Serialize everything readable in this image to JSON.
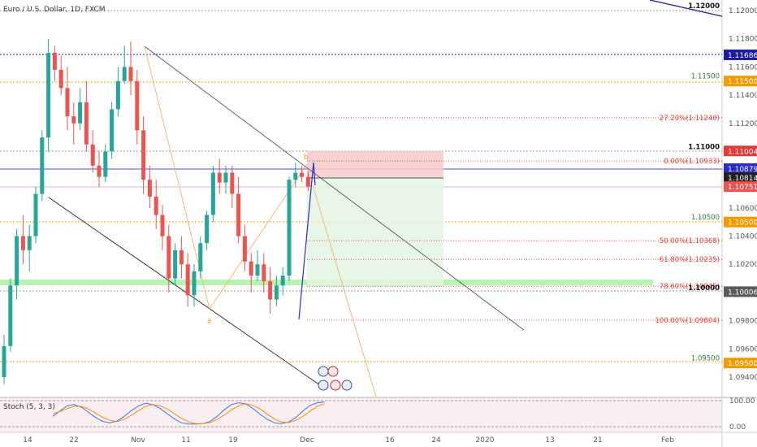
{
  "header": {
    "symbol": "Euro / U.S. Dollar, 1D, FXCM"
  },
  "indicator": {
    "label": "Stoch (5, 3, 3)",
    "upper": "100.00",
    "lower": "0.00"
  },
  "chart_data": {
    "type": "candlestick",
    "y_axis_ticks": [
      "1.12000",
      "1.11800",
      "1.11600",
      "1.11400",
      "1.11200",
      "1.11000",
      "1.10800",
      "1.10600",
      "1.10400",
      "1.10200",
      "1.10000",
      "1.09800",
      "1.09600",
      "1.09400"
    ],
    "x_axis_ticks": [
      "14",
      "22",
      "Nov",
      "11",
      "19",
      "Dec",
      "16",
      "24",
      "2020",
      "13",
      "21",
      "Feb"
    ],
    "price_tags": [
      {
        "text": "1.11686",
        "color": "#1a1aa6"
      },
      {
        "text": "1.11500",
        "color": "#f59b00"
      },
      {
        "text": "1.11004",
        "color": "#e53935"
      },
      {
        "text": "1.10879",
        "color": "#2a2ad0"
      },
      {
        "text": "1.10814",
        "color": "#222222"
      },
      {
        "text": "1.10751",
        "color": "#ef5350"
      },
      {
        "text": "1.10500",
        "color": "#f59b00"
      },
      {
        "text": "1.10006",
        "color": "#5a5a5a"
      },
      {
        "text": "1.09500",
        "color": "#f59b00"
      }
    ],
    "level_labels": [
      {
        "text": "1.12000",
        "color": "#111111",
        "bold": true
      },
      {
        "text": "1.11500",
        "color": "#2e7d32",
        "bold": false
      },
      {
        "text": "1.11000",
        "color": "#111111",
        "bold": true
      },
      {
        "text": "1.10500",
        "color": "#2e7d32",
        "bold": false
      },
      {
        "text": "1.10000",
        "color": "#111111",
        "bold": true
      },
      {
        "text": "1.09500",
        "color": "#2e7d32",
        "bold": false
      }
    ],
    "fib_levels": [
      {
        "text": "27.20%(1.11240)",
        "value": 1.1124
      },
      {
        "text": "0.00%(1.10933)",
        "value": 1.10933
      },
      {
        "text": "50.00%(1.10368)",
        "value": 1.10368
      },
      {
        "text": "61.80%(1.10235)",
        "value": 1.10235
      },
      {
        "text": "78.60%(1.10045)",
        "value": 1.10045
      },
      {
        "text": "100.00%(1.09804)",
        "value": 1.09804
      }
    ],
    "pattern_points": [
      "a",
      "b"
    ],
    "candles": [
      {
        "o": 1.094,
        "h": 1.097,
        "l": 1.0935,
        "c": 1.0962
      },
      {
        "o": 1.0962,
        "h": 1.101,
        "l": 1.0958,
        "c": 1.1005
      },
      {
        "o": 1.1005,
        "h": 1.1045,
        "l": 1.0995,
        "c": 1.104
      },
      {
        "o": 1.104,
        "h": 1.1055,
        "l": 1.102,
        "c": 1.103
      },
      {
        "o": 1.103,
        "h": 1.1048,
        "l": 1.1015,
        "c": 1.104
      },
      {
        "o": 1.104,
        "h": 1.1075,
        "l": 1.1035,
        "c": 1.107
      },
      {
        "o": 1.107,
        "h": 1.1115,
        "l": 1.1065,
        "c": 1.111
      },
      {
        "o": 1.111,
        "h": 1.118,
        "l": 1.11,
        "c": 1.117
      },
      {
        "o": 1.117,
        "h": 1.1175,
        "l": 1.115,
        "c": 1.1158
      },
      {
        "o": 1.1158,
        "h": 1.1168,
        "l": 1.114,
        "c": 1.1145
      },
      {
        "o": 1.1145,
        "h": 1.116,
        "l": 1.1115,
        "c": 1.1125
      },
      {
        "o": 1.1125,
        "h": 1.1135,
        "l": 1.1105,
        "c": 1.112
      },
      {
        "o": 1.112,
        "h": 1.1145,
        "l": 1.1115,
        "c": 1.1135
      },
      {
        "o": 1.1135,
        "h": 1.115,
        "l": 1.11,
        "c": 1.1105
      },
      {
        "o": 1.1105,
        "h": 1.1115,
        "l": 1.1085,
        "c": 1.109
      },
      {
        "o": 1.109,
        "h": 1.11,
        "l": 1.1075,
        "c": 1.1082
      },
      {
        "o": 1.1082,
        "h": 1.1105,
        "l": 1.1078,
        "c": 1.11
      },
      {
        "o": 1.11,
        "h": 1.1135,
        "l": 1.1095,
        "c": 1.113
      },
      {
        "o": 1.113,
        "h": 1.116,
        "l": 1.1125,
        "c": 1.115
      },
      {
        "o": 1.115,
        "h": 1.1175,
        "l": 1.1148,
        "c": 1.116
      },
      {
        "o": 1.116,
        "h": 1.1178,
        "l": 1.114,
        "c": 1.115
      },
      {
        "o": 1.115,
        "h": 1.1158,
        "l": 1.1105,
        "c": 1.1115
      },
      {
        "o": 1.1115,
        "h": 1.1125,
        "l": 1.107,
        "c": 1.108
      },
      {
        "o": 1.108,
        "h": 1.109,
        "l": 1.106,
        "c": 1.1068
      },
      {
        "o": 1.1068,
        "h": 1.108,
        "l": 1.1045,
        "c": 1.1055
      },
      {
        "o": 1.1055,
        "h": 1.1062,
        "l": 1.103,
        "c": 1.104
      },
      {
        "o": 1.104,
        "h": 1.1048,
        "l": 1.1,
        "c": 1.101
      },
      {
        "o": 1.101,
        "h": 1.1035,
        "l": 1.1005,
        "c": 1.103
      },
      {
        "o": 1.103,
        "h": 1.104,
        "l": 1.101,
        "c": 1.102
      },
      {
        "o": 1.102,
        "h": 1.1028,
        "l": 1.099,
        "c": 1.0998
      },
      {
        "o": 1.0998,
        "h": 1.102,
        "l": 1.099,
        "c": 1.1015
      },
      {
        "o": 1.1015,
        "h": 1.104,
        "l": 1.101,
        "c": 1.1035
      },
      {
        "o": 1.1035,
        "h": 1.1058,
        "l": 1.103,
        "c": 1.1055
      },
      {
        "o": 1.1055,
        "h": 1.109,
        "l": 1.105,
        "c": 1.1085
      },
      {
        "o": 1.1085,
        "h": 1.1095,
        "l": 1.107,
        "c": 1.1078
      },
      {
        "o": 1.1078,
        "h": 1.109,
        "l": 1.107,
        "c": 1.1085
      },
      {
        "o": 1.1085,
        "h": 1.109,
        "l": 1.106,
        "c": 1.107
      },
      {
        "o": 1.107,
        "h": 1.1082,
        "l": 1.1035,
        "c": 1.104
      },
      {
        "o": 1.104,
        "h": 1.1048,
        "l": 1.1015,
        "c": 1.1022
      },
      {
        "o": 1.1022,
        "h": 1.1028,
        "l": 1.1,
        "c": 1.1012
      },
      {
        "o": 1.1012,
        "h": 1.103,
        "l": 1.1008,
        "c": 1.102
      },
      {
        "o": 1.102,
        "h": 1.1028,
        "l": 1.1,
        "c": 1.1008
      },
      {
        "o": 1.1008,
        "h": 1.1018,
        "l": 1.0985,
        "c": 1.0995
      },
      {
        "o": 1.0995,
        "h": 1.1012,
        "l": 1.099,
        "c": 1.1005
      },
      {
        "o": 1.1005,
        "h": 1.1018,
        "l": 1.0998,
        "c": 1.1012
      },
      {
        "o": 1.1012,
        "h": 1.1082,
        "l": 1.1008,
        "c": 1.108
      },
      {
        "o": 1.108,
        "h": 1.1092,
        "l": 1.1075,
        "c": 1.1085
      },
      {
        "o": 1.1085,
        "h": 1.109,
        "l": 1.1078,
        "c": 1.1082
      },
      {
        "o": 1.1082,
        "h": 1.1086,
        "l": 1.1072,
        "c": 1.1075
      }
    ],
    "stoch_k": [
      40,
      60,
      80,
      85,
      75,
      55,
      35,
      20,
      15,
      22,
      40,
      62,
      80,
      90,
      85,
      70,
      50,
      30,
      15,
      10,
      10,
      12,
      20,
      40,
      65,
      85,
      92,
      88,
      70,
      48,
      28,
      15,
      12,
      18,
      35,
      60,
      82,
      92,
      95
    ],
    "stoch_d": [
      50,
      58,
      70,
      78,
      78,
      68,
      52,
      36,
      24,
      20,
      28,
      44,
      62,
      78,
      85,
      80,
      68,
      50,
      32,
      18,
      12,
      12,
      16,
      28,
      45,
      65,
      80,
      88,
      82,
      68,
      48,
      30,
      18,
      16,
      24,
      40,
      60,
      78,
      88
    ]
  }
}
